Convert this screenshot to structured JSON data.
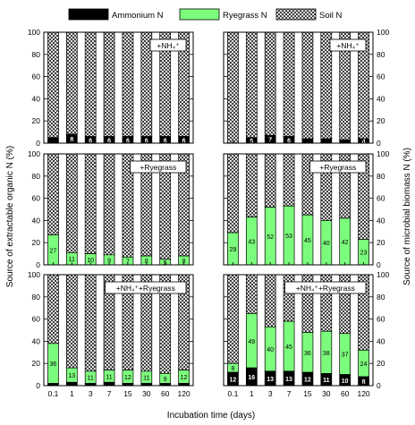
{
  "legend": [
    {
      "label": "Ammonium N",
      "color": "#000000",
      "pattern": "solid"
    },
    {
      "label": "Ryegrass N",
      "color": "#7CFC7C",
      "pattern": "solid"
    },
    {
      "label": "Soil N",
      "color": "#ffffff",
      "pattern": "crosshatch"
    }
  ],
  "axes": {
    "y_left_label": "Source of extractable organic N (%)",
    "y_right_label": "Source of microbial biomass N (%)",
    "x_label": "Incubation time (days)"
  },
  "chart_data": {
    "type": "bar",
    "stacked": true,
    "categories": [
      "0.1",
      "1",
      "3",
      "7",
      "15",
      "30",
      "60",
      "120"
    ],
    "yticks": [
      "0",
      "20",
      "40",
      "60",
      "80",
      "100"
    ],
    "ylim": [
      0,
      100
    ],
    "colors": {
      "ammonium": "#000000",
      "ryegrass": "#7CFC7C",
      "soil_pattern": "crosshatch"
    },
    "panels": [
      {
        "label": "+NH₄⁺",
        "measure": "extractable organic N",
        "column": "left",
        "ammonium": [
          5,
          8,
          6,
          6,
          6,
          6,
          6,
          6
        ],
        "ryegrass": [
          0,
          0,
          0,
          0,
          0,
          0,
          0,
          0
        ],
        "ammonium_labels": [
          "",
          "8",
          "6",
          "6",
          "6",
          "6",
          "6",
          "6"
        ],
        "ryegrass_labels": [
          "",
          "",
          "",
          "",
          "",
          "",
          "",
          ""
        ]
      },
      {
        "label": "+NH₄⁺",
        "measure": "microbial biomass N",
        "column": "right",
        "ammonium": [
          0,
          5,
          7,
          6,
          4,
          4,
          3,
          4
        ],
        "ryegrass": [
          0,
          0,
          0,
          0,
          0,
          0,
          0,
          0
        ],
        "ammonium_labels": [
          "",
          "5",
          "7",
          "6",
          "",
          "",
          "",
          "4"
        ],
        "ryegrass_labels": [
          "",
          "",
          "",
          "",
          "",
          "",
          "",
          ""
        ]
      },
      {
        "label": "+Ryegrass",
        "measure": "extractable organic N",
        "column": "left",
        "ammonium": [
          0,
          0,
          0,
          0,
          0,
          0,
          0,
          0
        ],
        "ryegrass": [
          27,
          11,
          10,
          9,
          7,
          8,
          5,
          8
        ],
        "ammonium_labels": [
          "",
          "",
          "",
          "",
          "",
          "",
          "",
          ""
        ],
        "ryegrass_labels": [
          "27",
          "11",
          "10",
          "9",
          "7",
          "8",
          "5",
          "8"
        ]
      },
      {
        "label": "+Ryegrass",
        "measure": "microbial biomass N",
        "column": "right",
        "ammonium": [
          0,
          0,
          0,
          0,
          0,
          0,
          0,
          0
        ],
        "ryegrass": [
          29,
          43,
          52,
          53,
          45,
          40,
          42,
          23
        ],
        "ammonium_labels": [
          "",
          "",
          "",
          "",
          "",
          "",
          "",
          ""
        ],
        "ryegrass_labels": [
          "29",
          "43",
          "52",
          "53",
          "45",
          "40",
          "42",
          "23"
        ]
      },
      {
        "label": "+NH₄⁺+Ryegrass",
        "measure": "extractable organic N",
        "column": "left",
        "ammonium": [
          2,
          3,
          2,
          3,
          2,
          2,
          2,
          2
        ],
        "ryegrass": [
          36,
          13,
          11,
          11,
          12,
          11,
          9,
          12
        ],
        "ammonium_labels": [
          "",
          "",
          "",
          "",
          "",
          "",
          "",
          ""
        ],
        "ryegrass_labels": [
          "36",
          "13",
          "11",
          "11",
          "12",
          "11",
          "9",
          "12"
        ]
      },
      {
        "label": "+NH₄⁺+Ryegrass",
        "measure": "microbial biomass N",
        "column": "right",
        "ammonium": [
          12,
          16,
          13,
          13,
          12,
          11,
          10,
          8
        ],
        "ryegrass": [
          8,
          49,
          40,
          45,
          36,
          38,
          37,
          24
        ],
        "ammonium_labels": [
          "12",
          "16",
          "13",
          "13",
          "12",
          "11",
          "10",
          "8"
        ],
        "ryegrass_labels": [
          "8",
          "49",
          "40",
          "45",
          "36",
          "38",
          "37",
          "24"
        ]
      }
    ]
  }
}
